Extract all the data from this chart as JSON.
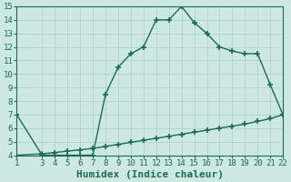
{
  "xlabel": "Humidex (Indice chaleur)",
  "bg_color": "#cce8e0",
  "line_color": "#1a6b5a",
  "x_curve": [
    1,
    3,
    4,
    5,
    6,
    7,
    8,
    9,
    10,
    11,
    12,
    13,
    14,
    15,
    16,
    17,
    18,
    19,
    20,
    21,
    22
  ],
  "y_curve": [
    7,
    4,
    4,
    4,
    4,
    4,
    8.5,
    10.5,
    11.5,
    12,
    14,
    14,
    15,
    13.8,
    13,
    12,
    11.7,
    11.5,
    11.5,
    9.2,
    7
  ],
  "x_line": [
    1,
    3,
    4,
    5,
    6,
    7,
    8,
    9,
    10,
    11,
    12,
    13,
    14,
    15,
    16,
    17,
    18,
    19,
    20,
    21,
    22
  ],
  "y_line": [
    4.0,
    4.1,
    4.2,
    4.3,
    4.4,
    4.5,
    4.65,
    4.8,
    4.95,
    5.1,
    5.25,
    5.4,
    5.55,
    5.7,
    5.85,
    6.0,
    6.15,
    6.3,
    6.5,
    6.7,
    7.0
  ],
  "xlim": [
    1,
    22
  ],
  "ylim": [
    4,
    15
  ],
  "xticks": [
    1,
    3,
    4,
    5,
    6,
    7,
    8,
    9,
    10,
    11,
    12,
    13,
    14,
    15,
    16,
    17,
    18,
    19,
    20,
    21,
    22
  ],
  "yticks": [
    4,
    5,
    6,
    7,
    8,
    9,
    10,
    11,
    12,
    13,
    14,
    15
  ],
  "grid_color": "#aacfc4",
  "marker": "+",
  "marker_size": 5,
  "linewidth": 1.0,
  "tick_fontsize": 6.5,
  "xlabel_fontsize": 8
}
